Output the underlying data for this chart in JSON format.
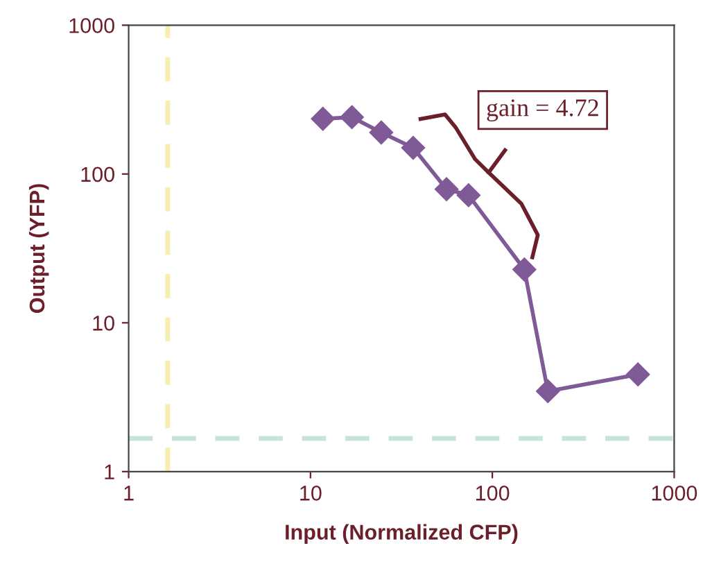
{
  "chart_data": {
    "type": "line",
    "xlabel": "Input (Normalized CFP)",
    "ylabel": "Output (YFP)",
    "log": "xy",
    "xlim": [
      1,
      1000
    ],
    "ylim": [
      1,
      1000
    ],
    "xticks": [
      1,
      10,
      100,
      1000
    ],
    "yticks": [
      1,
      10,
      100,
      1000
    ],
    "grid": false,
    "legend": false,
    "marker": "diamond",
    "line_style": "solid",
    "series": [
      {
        "color": "#7f5a96",
        "x": [
          11.7,
          16.9,
          24.5,
          36.7,
          56,
          74,
          150,
          202,
          632
        ],
        "values": [
          235,
          241,
          190,
          150,
          79,
          72,
          22.8,
          3.47,
          4.5
        ]
      }
    ],
    "ref_lines": [
      {
        "axis": "x",
        "value": 1.64,
        "label": null,
        "color": "#f7eeb0",
        "line_style": "dashed"
      },
      {
        "axis": "y",
        "value": 1.67,
        "label": null,
        "color": "#c8e4da",
        "line_style": "dashed"
      }
    ],
    "annotations": [
      "gain = 4.72"
    ]
  }
}
